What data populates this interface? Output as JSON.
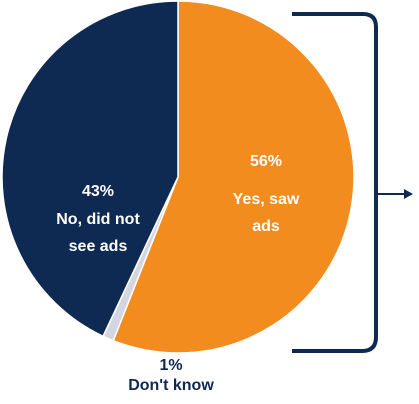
{
  "chart_data": {
    "type": "pie",
    "slices": [
      {
        "label": "Yes, saw ads",
        "value": 56,
        "value_label": "56%",
        "color": "#f28c1e"
      },
      {
        "label": "Don't know",
        "value": 1,
        "value_label": "1%",
        "color": "#d3d6e0"
      },
      {
        "label": "No, did not see ads",
        "value": 43,
        "value_label": "43%",
        "color": "#0f2a52"
      }
    ],
    "label_colors": {
      "inside": "#ffffff",
      "outside": "#0f2a52"
    },
    "legend": "none"
  },
  "annotations": {
    "bracket_color": "#0f2a52",
    "arrow_color": "#0f2a52"
  }
}
